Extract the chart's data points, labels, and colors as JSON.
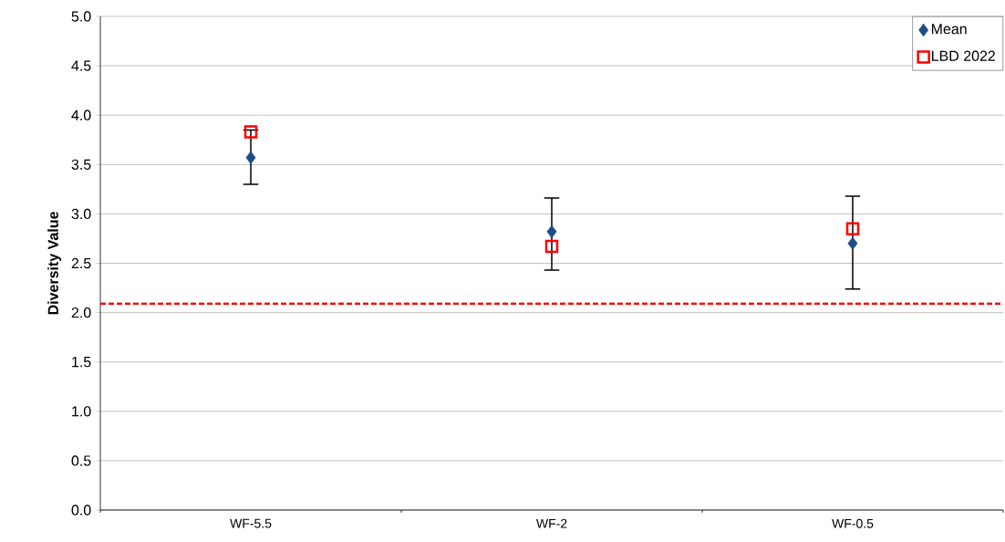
{
  "chart_data": {
    "type": "scatter",
    "ylabel": "Diversity Value",
    "categories": [
      "WF-5.5",
      "WF-2",
      "WF-0.5"
    ],
    "series": [
      {
        "name": "Mean",
        "color": "#1f4e87",
        "marker": "diamond",
        "values": [
          3.57,
          2.82,
          2.7
        ],
        "errors": [
          [
            3.3,
            3.85
          ],
          [
            2.43,
            3.16
          ],
          [
            2.24,
            3.18
          ]
        ]
      },
      {
        "name": "LBD 2022",
        "color": "#ff0000",
        "marker": "square",
        "values": [
          3.83,
          2.67,
          2.85
        ]
      }
    ],
    "ref_lines": [
      {
        "axis": "y",
        "value": 2.09,
        "color": "#ff0000",
        "line_style": "dashed"
      }
    ],
    "ylim": [
      0,
      5
    ],
    "yticks": [
      {
        "value": 0,
        "label": "0.0"
      },
      {
        "value": 0.5,
        "label": "0.5"
      },
      {
        "value": 1,
        "label": "1.0"
      },
      {
        "value": 1.5,
        "label": "1.5"
      },
      {
        "value": 2,
        "label": "2.0"
      },
      {
        "value": 2.5,
        "label": "2.5"
      },
      {
        "value": 3,
        "label": "3.0"
      },
      {
        "value": 3.5,
        "label": "3.5"
      },
      {
        "value": 4,
        "label": "4.0"
      },
      {
        "value": 4.5,
        "label": "4.5"
      },
      {
        "value": 5,
        "label": "5.0"
      }
    ],
    "grid": "y",
    "legend": "top right"
  }
}
